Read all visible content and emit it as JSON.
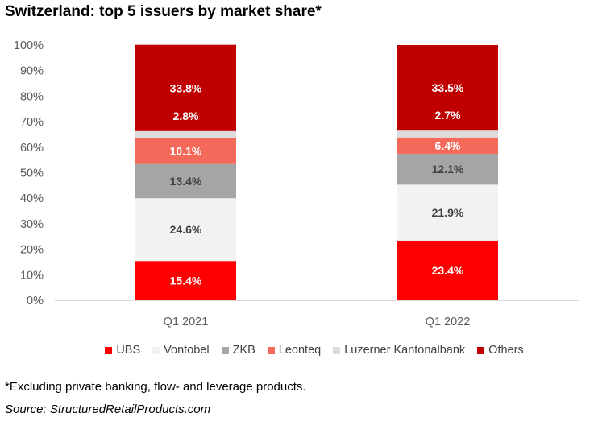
{
  "title": "Switzerland: top 5 issuers by market share*",
  "footnote": "*Excluding private banking, flow- and leverage products.",
  "source": "Source: StructuredRetailProducts.com",
  "chart_data": {
    "type": "bar",
    "stacked": true,
    "categories": [
      "Q1 2021",
      "Q1 2022"
    ],
    "ylim": [
      0,
      100
    ],
    "yticks": [
      "0%",
      "10%",
      "20%",
      "30%",
      "40%",
      "50%",
      "60%",
      "70%",
      "80%",
      "90%",
      "100%"
    ],
    "legend_position": "bottom",
    "series": [
      {
        "name": "UBS",
        "values": [
          15.4,
          23.4
        ],
        "labels": [
          "15.4%",
          "23.4%"
        ],
        "color": "#ff0000",
        "label_color": "#ffffff"
      },
      {
        "name": "Vontobel",
        "values": [
          24.6,
          21.9
        ],
        "labels": [
          "24.6%",
          "21.9%"
        ],
        "color": "#f2f2f2",
        "label_color": "#404040"
      },
      {
        "name": "ZKB",
        "values": [
          13.4,
          12.1
        ],
        "labels": [
          "13.4%",
          "12.1%"
        ],
        "color": "#a5a5a5",
        "label_color": "#404040"
      },
      {
        "name": "Leonteq",
        "values": [
          10.1,
          6.4
        ],
        "labels": [
          "10.1%",
          "6.4%"
        ],
        "color": "#f4695a",
        "label_color": "#ffffff"
      },
      {
        "name": "Luzerner Kantonalbank",
        "values": [
          2.8,
          2.7
        ],
        "labels": [
          "",
          ""
        ],
        "color": "#dcdcdc",
        "label_color": "#404040"
      },
      {
        "name": "Others",
        "values": [
          33.8,
          33.5
        ],
        "labels": [
          "33.8%",
          "33.5%"
        ],
        "color": "#c00000",
        "label_color": "#ffffff"
      }
    ],
    "extra_labels": [
      {
        "category": 0,
        "between": [
          4,
          5
        ],
        "text": "2.8%"
      },
      {
        "category": 1,
        "between": [
          4,
          5
        ],
        "text": "2.7%"
      }
    ]
  }
}
